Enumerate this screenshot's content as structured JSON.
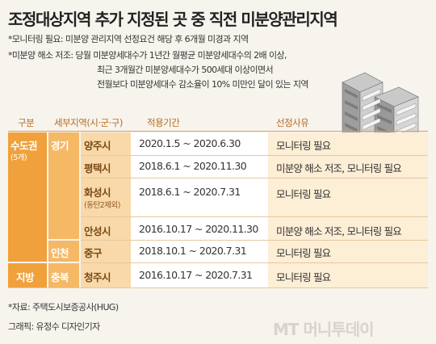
{
  "title": "조정대상지역 추가 지정된 곳 중 직전 미분양관리지역",
  "notes": {
    "line1": "*모니터링 필요: 미분양 관리지역 선정요건 해당 후 6개월 미경과 지역",
    "line2": "*미분양 해소 저조: 당월 미분양세대수가 1년간 월평균 미분양세대수의 2배 이상,",
    "line3": "최근 3개월간 미분양세대수가 500세대 이상이면서",
    "line4": "전월보다 미분양세대수 감소율이 10% 미만인 달이 있는 지역"
  },
  "table": {
    "headers": [
      "구분",
      "세부지역(시·군·구)",
      "적용기간",
      "선정사유"
    ],
    "regions": [
      {
        "name": "수도권",
        "sub": "(5개)"
      },
      {
        "name": "지방"
      }
    ],
    "provinces": [
      "경기",
      "인천",
      "충북"
    ],
    "rows": [
      {
        "city": "양주시",
        "period": "2020.1.5 ~ 2020.6.30",
        "reason": "모니터링 필요"
      },
      {
        "city": "평택시",
        "period": "2018.6.1 ~ 2020.11.30",
        "reason": "미분양 해소 저조, 모니터링 필요"
      },
      {
        "city": "화성시",
        "city_sub": "(동탄2제외)",
        "period": "2018.6.1 ~ 2020.7.31",
        "reason": "모니터링 필요"
      },
      {
        "city": "안성시",
        "period": "2016.10.17 ~ 2020.11.30",
        "reason": "미분양 해소 저조, 모니터링 필요"
      },
      {
        "city": "중구",
        "period": "2018.10.1 ~ 2020.7.31",
        "reason": "모니터링 필요"
      },
      {
        "city": "청주시",
        "period": "2016.10.17 ~ 2020.7.31",
        "reason": "모니터링 필요"
      }
    ]
  },
  "source": "*자료: 주택도시보증공사(HUG)",
  "credit": "그래픽: 유정수 디자인기자",
  "watermark": "MT 머니투데이",
  "icon": "building-illustration",
  "colors": {
    "region": "#f0a13c",
    "province": "#f5b865",
    "city": "#f9d9a9",
    "reason": "#fdeed6",
    "header_text": "#b86a1c",
    "background": "#f7f4ee"
  }
}
